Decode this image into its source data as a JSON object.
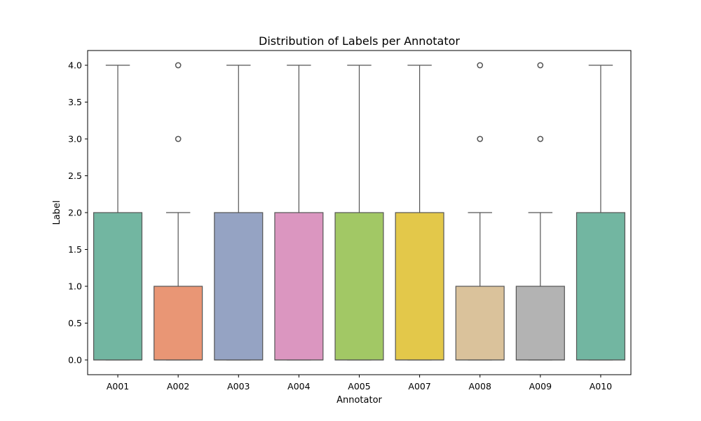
{
  "chart_data": {
    "type": "box",
    "title": "Distribution of Labels per Annotator",
    "xlabel": "Annotator",
    "ylabel": "Label",
    "ylim": [
      -0.2,
      4.2
    ],
    "yticks": [
      0.0,
      0.5,
      1.0,
      1.5,
      2.0,
      2.5,
      3.0,
      3.5,
      4.0
    ],
    "ytick_labels": [
      "0.0",
      "0.5",
      "1.0",
      "1.5",
      "2.0",
      "2.5",
      "3.0",
      "3.5",
      "4.0"
    ],
    "grid": false,
    "categories": [
      "A001",
      "A002",
      "A003",
      "A004",
      "A005",
      "A007",
      "A008",
      "A009",
      "A010"
    ],
    "boxes": [
      {
        "q1": 0,
        "median": 0,
        "q3": 2,
        "whisker_low": 0,
        "whisker_high": 4,
        "outliers": [],
        "color": "#72b6a1"
      },
      {
        "q1": 0,
        "median": 0,
        "q3": 1,
        "whisker_low": 0,
        "whisker_high": 2,
        "outliers": [
          3,
          4
        ],
        "color": "#e99675"
      },
      {
        "q1": 0,
        "median": 0,
        "q3": 2,
        "whisker_low": 0,
        "whisker_high": 4,
        "outliers": [],
        "color": "#95a3c3"
      },
      {
        "q1": 0,
        "median": 0,
        "q3": 2,
        "whisker_low": 0,
        "whisker_high": 4,
        "outliers": [],
        "color": "#db96c0"
      },
      {
        "q1": 0,
        "median": 0,
        "q3": 2,
        "whisker_low": 0,
        "whisker_high": 4,
        "outliers": [],
        "color": "#a2c865"
      },
      {
        "q1": 0,
        "median": 0,
        "q3": 2,
        "whisker_low": 0,
        "whisker_high": 4,
        "outliers": [],
        "color": "#e3c84a"
      },
      {
        "q1": 0,
        "median": 0,
        "q3": 1,
        "whisker_low": 0,
        "whisker_high": 2,
        "outliers": [
          3,
          4
        ],
        "color": "#dac29b"
      },
      {
        "q1": 0,
        "median": 0,
        "q3": 1,
        "whisker_low": 0,
        "whisker_high": 2,
        "outliers": [
          3,
          4
        ],
        "color": "#b3b3b3"
      },
      {
        "q1": 0,
        "median": 0,
        "q3": 2,
        "whisker_low": 0,
        "whisker_high": 4,
        "outliers": [],
        "color": "#72b6a1"
      }
    ],
    "line_color": "#555555"
  }
}
